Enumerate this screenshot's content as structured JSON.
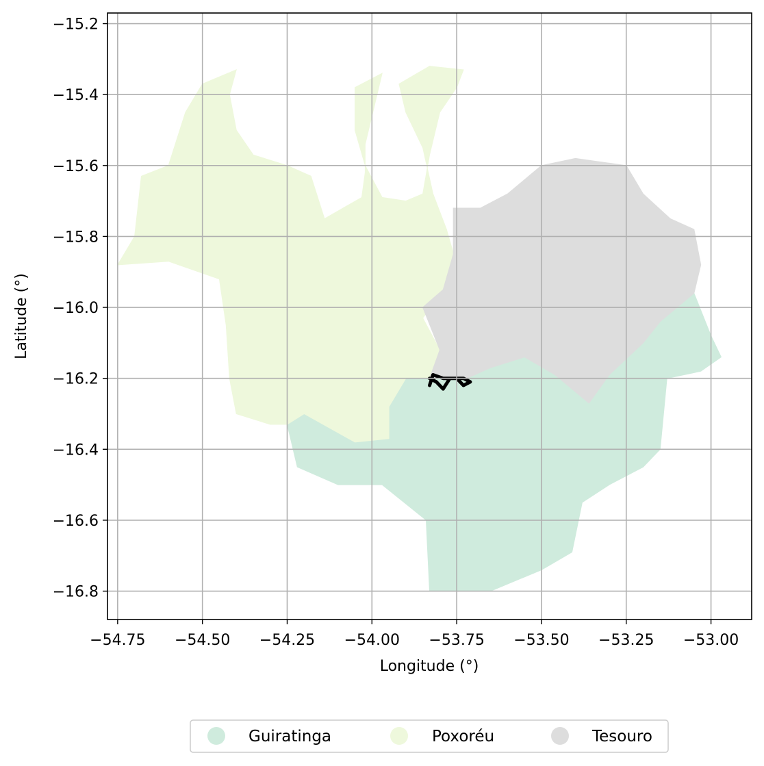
{
  "chart_data": {
    "type": "choropleth",
    "xlabel": "Longitude (°)",
    "ylabel": "Latitude (°)",
    "xlim": [
      -54.78,
      -52.88
    ],
    "ylim": [
      -16.88,
      -15.17
    ],
    "grid": true,
    "legend_placement": "bottom-center",
    "x_ticks": [
      {
        "value": -54.75,
        "label": "−54.75"
      },
      {
        "value": -54.5,
        "label": "−54.50"
      },
      {
        "value": -54.25,
        "label": "−54.25"
      },
      {
        "value": -54.0,
        "label": "−54.00"
      },
      {
        "value": -53.75,
        "label": "−53.75"
      },
      {
        "value": -53.5,
        "label": "−53.50"
      },
      {
        "value": -53.25,
        "label": "−53.25"
      },
      {
        "value": -53.0,
        "label": "−53.00"
      }
    ],
    "y_ticks": [
      {
        "value": -15.2,
        "label": "−15.2"
      },
      {
        "value": -15.4,
        "label": "−15.4"
      },
      {
        "value": -15.6,
        "label": "−15.6"
      },
      {
        "value": -15.8,
        "label": "−15.8"
      },
      {
        "value": -16.0,
        "label": "−16.0"
      },
      {
        "value": -16.2,
        "label": "−16.2"
      },
      {
        "value": -16.4,
        "label": "−16.4"
      },
      {
        "value": -16.6,
        "label": "−16.6"
      },
      {
        "value": -16.8,
        "label": "−16.8"
      }
    ],
    "regions": [
      {
        "name": "Guiratinga",
        "color": "#cfebdd",
        "polygon": [
          [
            -53.83,
            -16.2
          ],
          [
            -53.72,
            -16.2
          ],
          [
            -53.65,
            -16.17
          ],
          [
            -53.55,
            -16.14
          ],
          [
            -53.46,
            -16.19
          ],
          [
            -53.36,
            -16.27
          ],
          [
            -53.3,
            -16.19
          ],
          [
            -53.2,
            -16.1
          ],
          [
            -53.15,
            -16.04
          ],
          [
            -53.05,
            -15.96
          ],
          [
            -53.0,
            -16.08
          ],
          [
            -52.97,
            -16.14
          ],
          [
            -53.03,
            -16.18
          ],
          [
            -53.13,
            -16.2
          ],
          [
            -53.15,
            -16.4
          ],
          [
            -53.2,
            -16.45
          ],
          [
            -53.3,
            -16.5
          ],
          [
            -53.38,
            -16.55
          ],
          [
            -53.41,
            -16.69
          ],
          [
            -53.5,
            -16.74
          ],
          [
            -53.65,
            -16.8
          ],
          [
            -53.83,
            -16.8
          ],
          [
            -53.84,
            -16.6
          ],
          [
            -53.97,
            -16.5
          ],
          [
            -54.1,
            -16.5
          ],
          [
            -54.22,
            -16.45
          ],
          [
            -54.25,
            -16.33
          ],
          [
            -54.2,
            -16.3
          ],
          [
            -54.05,
            -16.38
          ],
          [
            -53.95,
            -16.37
          ],
          [
            -53.95,
            -16.28
          ],
          [
            -53.9,
            -16.2
          ]
        ]
      },
      {
        "name": "Poxoréu",
        "color": "#eef8dc",
        "polygon": [
          [
            -53.82,
            -15.68
          ],
          [
            -53.85,
            -15.55
          ],
          [
            -53.9,
            -15.45
          ],
          [
            -53.92,
            -15.37
          ],
          [
            -53.83,
            -15.32
          ],
          [
            -53.73,
            -15.33
          ],
          [
            -53.75,
            -15.38
          ],
          [
            -53.8,
            -15.45
          ],
          [
            -53.83,
            -15.57
          ],
          [
            -53.85,
            -15.68
          ],
          [
            -53.9,
            -15.7
          ],
          [
            -53.97,
            -15.69
          ],
          [
            -54.02,
            -15.6
          ],
          [
            -54.05,
            -15.5
          ],
          [
            -54.05,
            -15.38
          ],
          [
            -53.97,
            -15.34
          ],
          [
            -54.02,
            -15.54
          ],
          [
            -54.02,
            -15.62
          ],
          [
            -54.03,
            -15.69
          ],
          [
            -54.14,
            -15.75
          ],
          [
            -54.18,
            -15.63
          ],
          [
            -54.25,
            -15.6
          ],
          [
            -54.35,
            -15.57
          ],
          [
            -54.4,
            -15.5
          ],
          [
            -54.42,
            -15.4
          ],
          [
            -54.4,
            -15.33
          ],
          [
            -54.5,
            -15.37
          ],
          [
            -54.55,
            -15.45
          ],
          [
            -54.6,
            -15.6
          ],
          [
            -54.68,
            -15.63
          ],
          [
            -54.7,
            -15.8
          ],
          [
            -54.75,
            -15.88
          ],
          [
            -54.6,
            -15.87
          ],
          [
            -54.45,
            -15.92
          ],
          [
            -54.43,
            -16.05
          ],
          [
            -54.42,
            -16.2
          ],
          [
            -54.4,
            -16.3
          ],
          [
            -54.3,
            -16.33
          ],
          [
            -54.25,
            -16.33
          ],
          [
            -54.2,
            -16.3
          ],
          [
            -54.05,
            -16.38
          ],
          [
            -53.95,
            -16.37
          ],
          [
            -53.95,
            -16.28
          ],
          [
            -53.9,
            -16.2
          ],
          [
            -53.83,
            -16.2
          ],
          [
            -53.8,
            -16.12
          ],
          [
            -53.85,
            -16.03
          ],
          [
            -53.79,
            -15.95
          ],
          [
            -53.75,
            -15.88
          ],
          [
            -53.78,
            -15.78
          ]
        ]
      },
      {
        "name": "Tesouro",
        "color": "#dddddd",
        "polygon": [
          [
            -53.85,
            -16.0
          ],
          [
            -53.79,
            -15.95
          ],
          [
            -53.76,
            -15.85
          ],
          [
            -53.76,
            -15.72
          ],
          [
            -53.68,
            -15.72
          ],
          [
            -53.6,
            -15.68
          ],
          [
            -53.5,
            -15.6
          ],
          [
            -53.4,
            -15.58
          ],
          [
            -53.25,
            -15.6
          ],
          [
            -53.2,
            -15.68
          ],
          [
            -53.12,
            -15.75
          ],
          [
            -53.05,
            -15.78
          ],
          [
            -53.03,
            -15.88
          ],
          [
            -53.05,
            -15.96
          ],
          [
            -53.15,
            -16.04
          ],
          [
            -53.2,
            -16.1
          ],
          [
            -53.3,
            -16.19
          ],
          [
            -53.36,
            -16.27
          ],
          [
            -53.46,
            -16.19
          ],
          [
            -53.55,
            -16.14
          ],
          [
            -53.65,
            -16.17
          ],
          [
            -53.72,
            -16.2
          ],
          [
            -53.83,
            -16.2
          ],
          [
            -53.8,
            -16.12
          ]
        ]
      }
    ],
    "route": {
      "color": "#000000",
      "points": [
        [
          -53.83,
          -16.2
        ],
        [
          -53.81,
          -16.21
        ],
        [
          -53.79,
          -16.23
        ],
        [
          -53.77,
          -16.2
        ],
        [
          -53.75,
          -16.2
        ],
        [
          -53.73,
          -16.22
        ],
        [
          -53.71,
          -16.21
        ],
        [
          -53.73,
          -16.2
        ],
        [
          -53.76,
          -16.2
        ],
        [
          -53.79,
          -16.2
        ],
        [
          -53.82,
          -16.19
        ],
        [
          -53.83,
          -16.22
        ]
      ]
    },
    "legend": [
      {
        "label": "Guiratinga",
        "color": "#cfebdd"
      },
      {
        "label": "Poxoréu",
        "color": "#eef8dc"
      },
      {
        "label": "Tesouro",
        "color": "#dddddd"
      }
    ]
  }
}
